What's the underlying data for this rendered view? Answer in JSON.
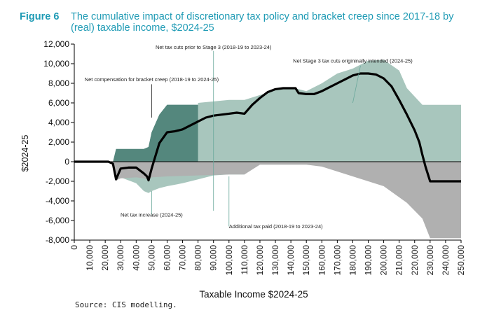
{
  "figure": {
    "number": "Figure 6",
    "title": "The cumulative impact of discretionary tax policy and bracket creep since 2017-18 by (real) taxable income, $2024-25",
    "source": "Source:   CIS modelling."
  },
  "colors": {
    "dark_green": "#54877d",
    "light_green": "#a8c6bd",
    "gray": "#b0b0b0",
    "line": "#000000",
    "title": "#1f9bb5"
  },
  "chart_data": {
    "type": "area",
    "xlabel": "Taxable Income $2024-25",
    "ylabel": "$2024-25",
    "xlim": [
      0,
      250000
    ],
    "ylim": [
      -8000,
      12000
    ],
    "grid": false,
    "x_ticks": [
      "0",
      "10,000",
      "20,000",
      "30,000",
      "40,000",
      "50,000",
      "60,000",
      "70,000",
      "80,000",
      "90,000",
      "100,000",
      "110,000",
      "120,000",
      "130,000",
      "140,000",
      "150,000",
      "160,000",
      "170,000",
      "180,000",
      "190,000",
      "200,000",
      "210,000",
      "220,000",
      "230,000",
      "240,000",
      "250,000"
    ],
    "y_ticks": [
      {
        "value": 12000,
        "label": "12,000"
      },
      {
        "value": 10000,
        "label": "10,000"
      },
      {
        "value": 8000,
        "label": "8,000"
      },
      {
        "value": 6000,
        "label": "6,000"
      },
      {
        "value": 4000,
        "label": "4,000"
      },
      {
        "value": 2000,
        "label": "2,000"
      },
      {
        "value": 0,
        "label": "0"
      },
      {
        "value": -2000,
        "label": "-2,000"
      },
      {
        "value": -4000,
        "label": "-4,000"
      },
      {
        "value": -6000,
        "label": "-6,000"
      },
      {
        "value": -8000,
        "label": "-8,000"
      }
    ],
    "series": [
      {
        "name": "Net compensation for bracket creep (2018-19 to 2024-25)",
        "kind": "area",
        "color": "#54877d",
        "x": [
          0,
          25000,
          27000,
          30000,
          45000,
          48000,
          50000,
          55000,
          60000,
          80000,
          100000,
          110000,
          135000,
          145000,
          150000,
          180000,
          200000,
          205000,
          215000,
          225000,
          250000
        ],
        "y": [
          0,
          0,
          1300,
          1300,
          1300,
          1500,
          3000,
          4800,
          5800,
          5800,
          5800,
          5500,
          5400,
          4500,
          4000,
          4000,
          3700,
          3700,
          3000,
          1300,
          1300
        ]
      },
      {
        "name": "Net tax cuts prior to Stage 3 (2018-19 to 2023-24)",
        "kind": "area",
        "color": "#54877d",
        "x": [
          45000,
          48000,
          50000,
          55000,
          60000,
          80000,
          100000,
          110000,
          120000,
          130000,
          135000,
          140000,
          145000
        ],
        "y": [
          1300,
          1500,
          3000,
          4800,
          5800,
          5800,
          5800,
          6000,
          6000,
          6000,
          6000,
          6000,
          6000
        ]
      },
      {
        "name": "Net Stage 3 tax cuts origininally intended (2024-25)",
        "kind": "area",
        "color": "#a8c6bd",
        "x": [
          80000,
          100000,
          110000,
          120000,
          130000,
          140000,
          145000,
          150000,
          160000,
          170000,
          180000,
          190000,
          200000,
          210000,
          215000,
          225000,
          250000
        ],
        "y": [
          6000,
          6300,
          6300,
          6800,
          7300,
          7600,
          7400,
          7200,
          8000,
          9000,
          9500,
          10300,
          10400,
          9300,
          7500,
          5800,
          5800
        ]
      },
      {
        "name": "Net tax increase (2024-25)",
        "kind": "area",
        "color": "#a8c6bd",
        "x": [
          25000,
          27000,
          30000,
          40000,
          45000,
          48000,
          50000,
          55000,
          60000,
          70000,
          80000,
          90000,
          100000,
          110000
        ],
        "y": [
          0,
          -1600,
          -1600,
          -2200,
          -3000,
          -3200,
          -3000,
          -2700,
          -2500,
          -2200,
          -1800,
          -1400,
          -1300,
          -1300
        ]
      },
      {
        "name": "Additional tax paid (2018-19 to 2023-24)",
        "kind": "area",
        "color": "#b0b0b0",
        "x": [
          20000,
          25000,
          27000,
          30000,
          40000,
          45000,
          48000,
          50000,
          60000,
          80000,
          100000,
          110000,
          120000,
          150000,
          160000,
          200000,
          215000,
          225000,
          230000,
          250000
        ],
        "y": [
          0,
          0,
          -1900,
          -1700,
          -1600,
          -1700,
          -1800,
          -1600,
          -1500,
          -1400,
          -1300,
          -1300,
          -300,
          -300,
          -500,
          -2500,
          -4200,
          -5800,
          -7800,
          -7800
        ]
      },
      {
        "name": "",
        "kind": "line",
        "color": "#000000",
        "x": [
          0,
          22000,
          25000,
          27000,
          30000,
          35000,
          40000,
          45000,
          47000,
          48000,
          50000,
          55000,
          60000,
          65000,
          70000,
          75000,
          80000,
          85000,
          90000,
          95000,
          100000,
          105000,
          110000,
          115000,
          120000,
          125000,
          130000,
          135000,
          140000,
          143000,
          145000,
          150000,
          155000,
          160000,
          165000,
          170000,
          175000,
          180000,
          185000,
          190000,
          195000,
          200000,
          205000,
          210000,
          215000,
          220000,
          223000,
          225000,
          227000,
          230000,
          240000,
          250000
        ],
        "y": [
          0,
          0,
          -200,
          -1800,
          -700,
          -600,
          -600,
          -1200,
          -1500,
          -1900,
          -700,
          1900,
          3000,
          3100,
          3300,
          3700,
          4100,
          4500,
          4700,
          4800,
          4900,
          5000,
          4900,
          5800,
          6500,
          7100,
          7400,
          7500,
          7500,
          7500,
          7000,
          6900,
          6900,
          7200,
          7600,
          8000,
          8400,
          8800,
          9000,
          9000,
          8900,
          8500,
          7700,
          6300,
          4800,
          3200,
          2000,
          700,
          -500,
          -2000,
          -2000,
          -2000
        ]
      }
    ],
    "annotations": [
      {
        "text": "Net tax cuts prior to Stage 3 (2018-19 to 2023-24)",
        "x": 90000,
        "y": 11500
      },
      {
        "text": "Net Stage 3 tax cuts origininally intended (2024-25)",
        "x": 180000,
        "y": 10100
      },
      {
        "text": "Net compensation for bracket creep (2018-19 to 2024-25)",
        "x": 50000,
        "y": 8200
      },
      {
        "text": "Net tax increase (2024-25)",
        "x": 50000,
        "y": -5600
      },
      {
        "text": "Additional tax paid (2018-19 to 2023-24)",
        "x": 100000,
        "y": -6800
      }
    ]
  }
}
